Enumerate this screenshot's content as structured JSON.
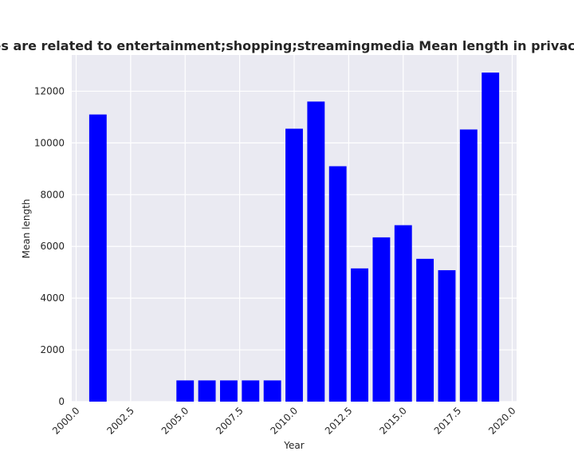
{
  "chart_data": {
    "type": "bar",
    "title": "Categories are related to entertainment;shopping;streamingmedia Mean length in privacy policies",
    "xlabel": "Year",
    "ylabel": "Mean length",
    "x": [
      2001,
      2005,
      2006,
      2007,
      2008,
      2009,
      2010,
      2011,
      2012,
      2013,
      2014,
      2015,
      2016,
      2017,
      2018,
      2019
    ],
    "values": [
      11100,
      820,
      820,
      820,
      820,
      820,
      10550,
      11600,
      9100,
      5150,
      6350,
      6820,
      5520,
      5080,
      10520,
      12720
    ],
    "xlim": [
      1999.8,
      2020.2
    ],
    "ylim": [
      0,
      13400
    ],
    "xticks": [
      2000.0,
      2002.5,
      2005.0,
      2007.5,
      2010.0,
      2012.5,
      2015.0,
      2017.5,
      2020.0
    ],
    "xtick_labels": [
      "2000.0",
      "2002.5",
      "2005.0",
      "2007.5",
      "2010.0",
      "2012.5",
      "2015.0",
      "2017.5",
      "2020.0"
    ],
    "yticks": [
      0,
      2000,
      4000,
      6000,
      8000,
      10000,
      12000
    ],
    "ytick_labels": [
      "0",
      "2000",
      "4000",
      "6000",
      "8000",
      "10000",
      "12000"
    ],
    "bar_color": "#0000ff",
    "background_color": "#eaeaf2",
    "grid": true,
    "grid_color": "#ffffff"
  }
}
